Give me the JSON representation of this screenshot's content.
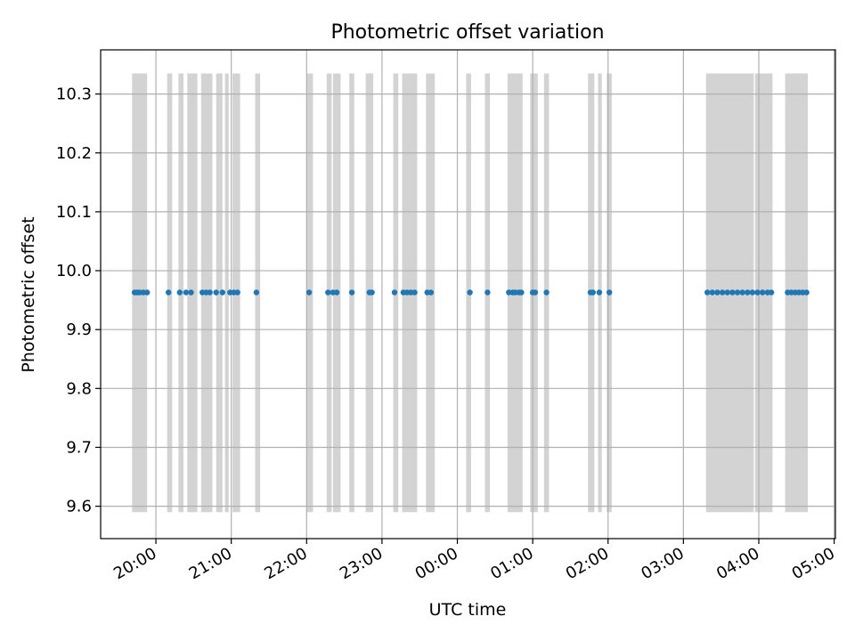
{
  "chart_data": {
    "type": "scatter",
    "title": "Photometric offset variation",
    "xlabel": "UTC time",
    "ylabel": "Photometric offset",
    "xlim": [
      "19:16",
      "05:01"
    ],
    "ylim": [
      9.545,
      10.375
    ],
    "x_ticks": [
      "20:00",
      "21:00",
      "22:00",
      "23:00",
      "00:00",
      "01:00",
      "02:00",
      "03:00",
      "04:00",
      "05:00"
    ],
    "y_ticks": [
      "9.6",
      "9.7",
      "9.8",
      "9.9",
      "10.0",
      "10.1",
      "10.2",
      "10.3"
    ],
    "grid": true,
    "point_color": "#1f77b4",
    "band_color": "#d3d3d3",
    "band_range": [
      9.59,
      10.335
    ],
    "bands": [
      [
        "19:41",
        "19:53"
      ],
      [
        "20:09",
        "20:13"
      ],
      [
        "20:18",
        "20:22"
      ],
      [
        "20:25",
        "20:33"
      ],
      [
        "20:36",
        "20:45"
      ],
      [
        "20:48",
        "20:53"
      ],
      [
        "20:55",
        "20:58"
      ],
      [
        "21:01",
        "21:07"
      ],
      [
        "21:19",
        "21:23"
      ],
      [
        "22:00",
        "22:05"
      ],
      [
        "22:16",
        "22:20"
      ],
      [
        "22:21",
        "22:27"
      ],
      [
        "22:34",
        "22:38"
      ],
      [
        "22:47",
        "22:53"
      ],
      [
        "23:09",
        "23:13"
      ],
      [
        "23:16",
        "23:28"
      ],
      [
        "23:35",
        "23:42"
      ],
      [
        "00:07",
        "00:11"
      ],
      [
        "00:22",
        "00:26"
      ],
      [
        "00:40",
        "00:52"
      ],
      [
        "00:58",
        "01:04"
      ],
      [
        "01:09",
        "01:13"
      ],
      [
        "01:44",
        "01:49"
      ],
      [
        "01:52",
        "01:55"
      ],
      [
        "01:59",
        "02:03"
      ],
      [
        "03:18",
        "03:56"
      ],
      [
        "03:57",
        "04:11"
      ],
      [
        "04:21",
        "04:34"
      ],
      [
        "04:34",
        "04:39"
      ]
    ],
    "series": [
      {
        "x": [
          "19:43",
          "19:45",
          "19:47",
          "19:50",
          "19:53",
          "20:10",
          "20:19",
          "20:24",
          "20:28",
          "20:37",
          "20:40",
          "20:43",
          "20:48",
          "20:53",
          "20:59",
          "21:02",
          "21:05",
          "21:20",
          "22:02",
          "22:17",
          "22:21",
          "22:24",
          "22:36",
          "22:50",
          "22:52",
          "23:10",
          "23:17",
          "23:20",
          "23:23",
          "23:26",
          "23:36",
          "23:39",
          "00:10",
          "00:24",
          "00:41",
          "00:44",
          "00:46",
          "00:49",
          "00:51",
          "01:00",
          "01:02",
          "01:11",
          "01:46",
          "01:48",
          "01:53",
          "02:01",
          "03:19",
          "03:23",
          "03:27",
          "03:31",
          "03:35",
          "03:39",
          "03:43",
          "03:47",
          "03:51",
          "03:55",
          "03:59",
          "04:03",
          "04:07",
          "04:10",
          "04:23",
          "04:26",
          "04:29",
          "04:32",
          "04:35",
          "04:38"
        ],
        "y": 9.963
      }
    ]
  }
}
